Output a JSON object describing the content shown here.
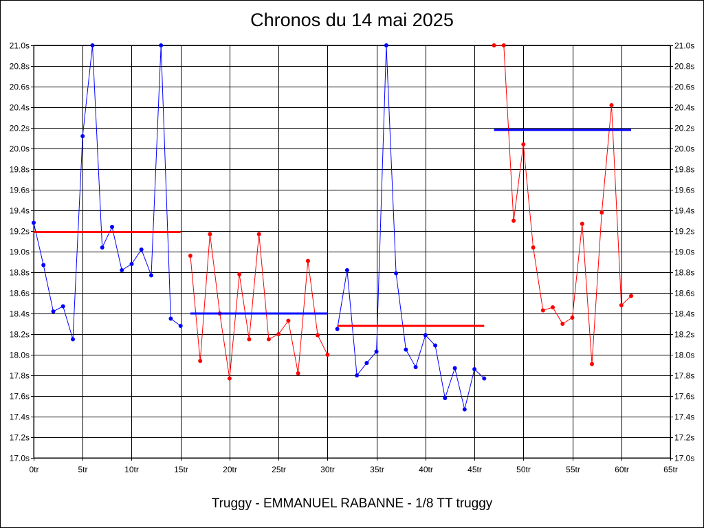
{
  "chart_data": {
    "type": "line",
    "title": "Chronos du 14 mai 2025",
    "footer": "Truggy - EMMANUEL RABANNE - 1/8 TT truggy",
    "xlabel": "",
    "ylabel": "",
    "xlim": [
      0,
      65
    ],
    "ylim": [
      17.0,
      21.0
    ],
    "x_ticks": [
      0,
      5,
      10,
      15,
      20,
      25,
      30,
      35,
      40,
      45,
      50,
      55,
      60,
      65
    ],
    "x_tick_suffix": "tr",
    "y_ticks": [
      17.0,
      17.2,
      17.4,
      17.6,
      17.8,
      18.0,
      18.2,
      18.4,
      18.6,
      18.8,
      19.0,
      19.2,
      19.4,
      19.6,
      19.8,
      20.0,
      20.2,
      20.4,
      20.6,
      20.8,
      21.0
    ],
    "y_tick_suffix": "s",
    "y_axis_both_sides": true,
    "grid": true,
    "series": [
      {
        "color": "#0000ff",
        "x": [
          0,
          1,
          2,
          3,
          4,
          5,
          6,
          7,
          8,
          9,
          10,
          11,
          12,
          13,
          14,
          15
        ],
        "y": [
          19.28,
          18.87,
          18.42,
          18.47,
          18.15,
          20.12,
          21.0,
          19.04,
          19.24,
          18.82,
          18.88,
          19.02,
          18.77,
          21.0,
          18.35,
          18.28
        ]
      },
      {
        "color": "#ff0000",
        "x": [
          16,
          17,
          18,
          19,
          20,
          21,
          22,
          23,
          24,
          25,
          26,
          27,
          28,
          29,
          30
        ],
        "y": [
          18.96,
          17.94,
          19.17,
          18.4,
          17.77,
          18.78,
          18.15,
          19.17,
          18.15,
          18.2,
          18.33,
          17.82,
          18.91,
          18.19,
          18.0
        ]
      },
      {
        "color": "#0000ff",
        "x": [
          31,
          32,
          33,
          34,
          35,
          36,
          37,
          38,
          39,
          40,
          41,
          42,
          43,
          44,
          45,
          46
        ],
        "y": [
          18.25,
          18.82,
          17.8,
          17.92,
          18.03,
          21.0,
          18.79,
          18.05,
          17.88,
          18.19,
          18.09,
          17.58,
          17.87,
          17.47,
          17.86,
          17.77
        ]
      },
      {
        "color": "#ff0000",
        "x": [
          47,
          48,
          49,
          50,
          51,
          52,
          53,
          54,
          55,
          56,
          57,
          58,
          59,
          60,
          61
        ],
        "y": [
          21.0,
          21.0,
          19.3,
          20.04,
          19.04,
          18.43,
          18.46,
          18.3,
          18.36,
          19.27,
          17.91,
          19.38,
          20.42,
          18.48,
          18.57
        ]
      }
    ],
    "averages": [
      {
        "color": "#ff0000",
        "x": [
          0,
          15
        ],
        "y": 19.19
      },
      {
        "color": "#0000ff",
        "x": [
          16,
          30
        ],
        "y": 18.4
      },
      {
        "color": "#ff0000",
        "x": [
          31,
          46
        ],
        "y": 18.28
      },
      {
        "color": "#0000ff",
        "x": [
          47,
          61
        ],
        "y": 20.18
      }
    ],
    "clipped_at_top": 21.0
  }
}
